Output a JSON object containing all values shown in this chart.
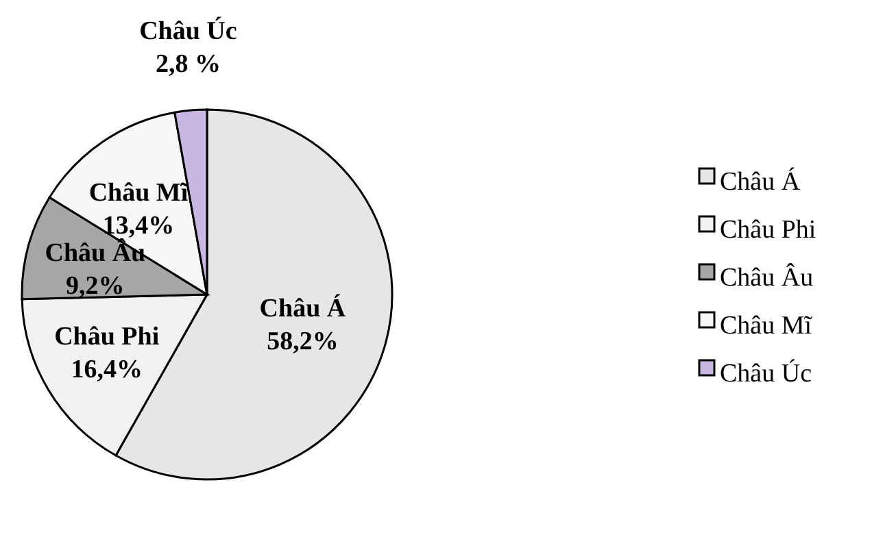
{
  "chart_data": {
    "type": "pie",
    "categories": [
      "Châu Á",
      "Châu Phi",
      "Châu Âu",
      "Châu Mĩ",
      "Châu Úc"
    ],
    "values": [
      58.2,
      16.4,
      9.2,
      13.4,
      2.8
    ],
    "value_labels": [
      "58,2%",
      "16,4%",
      "9,2%",
      "13,4%",
      "2,8 %"
    ],
    "colors": [
      "#e6e6e6",
      "#f2f2f2",
      "#a6a6a6",
      "#f7f7f7",
      "#c9b6e3"
    ],
    "legend": "right"
  }
}
